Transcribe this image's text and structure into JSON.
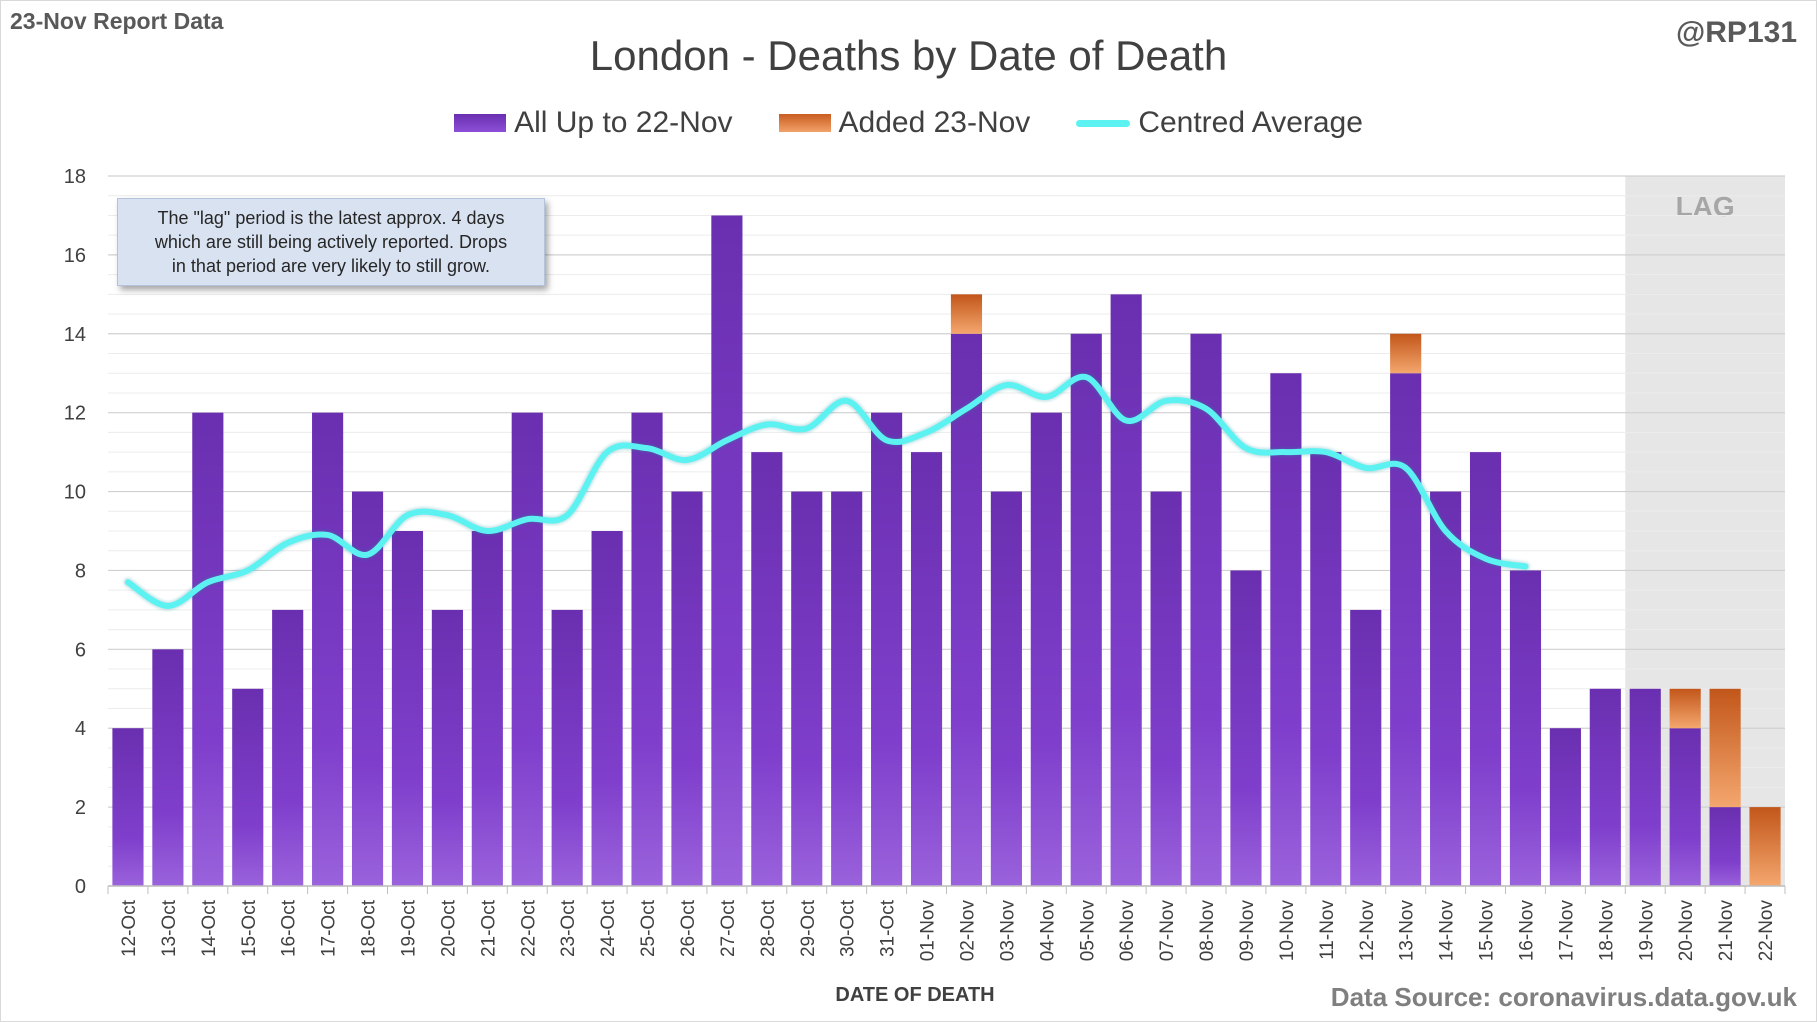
{
  "header": {
    "report_label": "23-Nov Report Data",
    "handle": "@RP131",
    "source": "Data Source: coronavirus.data.gov.uk"
  },
  "note_lines": [
    "The \"lag\" period is the latest approx. 4 days",
    "which are still being actively reported.  Drops",
    "in that period are very likely to still grow."
  ],
  "colors": {
    "base_bar": "#7b3fc6",
    "added_bar": "#e07a35",
    "average_line": "#5cf2f2",
    "lag_shade": "#e6e6e6"
  },
  "chart_data": {
    "type": "bar",
    "title": "London - Deaths by Date of Death",
    "xlabel": "DATE OF DEATH",
    "ylabel": "",
    "ylim": [
      0,
      18
    ],
    "yticks": [
      0,
      2,
      4,
      6,
      8,
      10,
      12,
      14,
      16,
      18
    ],
    "grid": true,
    "stacked": true,
    "legend_position": "top",
    "categories": [
      "12-Oct",
      "13-Oct",
      "14-Oct",
      "15-Oct",
      "16-Oct",
      "17-Oct",
      "18-Oct",
      "19-Oct",
      "20-Oct",
      "21-Oct",
      "22-Oct",
      "23-Oct",
      "24-Oct",
      "25-Oct",
      "26-Oct",
      "27-Oct",
      "28-Oct",
      "29-Oct",
      "30-Oct",
      "31-Oct",
      "01-Nov",
      "02-Nov",
      "03-Nov",
      "04-Nov",
      "05-Nov",
      "06-Nov",
      "07-Nov",
      "08-Nov",
      "09-Nov",
      "10-Nov",
      "11-Nov",
      "12-Nov",
      "13-Nov",
      "14-Nov",
      "15-Nov",
      "16-Nov",
      "17-Nov",
      "18-Nov",
      "19-Nov",
      "20-Nov",
      "21-Nov",
      "22-Nov"
    ],
    "series": [
      {
        "name": "All Up to 22-Nov",
        "kind": "bar",
        "values": [
          4,
          6,
          12,
          5,
          7,
          12,
          10,
          9,
          7,
          9,
          12,
          7,
          9,
          12,
          10,
          17,
          11,
          10,
          10,
          12,
          11,
          14,
          10,
          12,
          14,
          15,
          10,
          14,
          8,
          13,
          11,
          7,
          13,
          10,
          11,
          8,
          4,
          5,
          5,
          4,
          2,
          0
        ]
      },
      {
        "name": "Added 23-Nov",
        "kind": "bar",
        "values": [
          0,
          0,
          0,
          0,
          0,
          0,
          0,
          0,
          0,
          0,
          0,
          0,
          0,
          0,
          0,
          0,
          0,
          0,
          0,
          0,
          0,
          1,
          0,
          0,
          0,
          0,
          0,
          0,
          0,
          0,
          0,
          0,
          1,
          0,
          0,
          0,
          0,
          0,
          0,
          1,
          3,
          2
        ]
      },
      {
        "name": "Centred Average",
        "kind": "line",
        "values": [
          7.7,
          7.1,
          7.7,
          8.0,
          8.7,
          8.9,
          8.4,
          9.4,
          9.4,
          9.0,
          9.3,
          9.4,
          11.0,
          11.1,
          10.8,
          11.3,
          11.7,
          11.6,
          12.3,
          11.3,
          11.5,
          12.1,
          12.7,
          12.4,
          12.9,
          11.8,
          12.3,
          12.1,
          11.1,
          11.0,
          11.0,
          10.6,
          10.6,
          9.0,
          8.3,
          8.1,
          null,
          null,
          null,
          null,
          null,
          null
        ]
      }
    ],
    "lag_region": {
      "label": "LAG",
      "from": "19-Nov",
      "to": "22-Nov"
    }
  }
}
